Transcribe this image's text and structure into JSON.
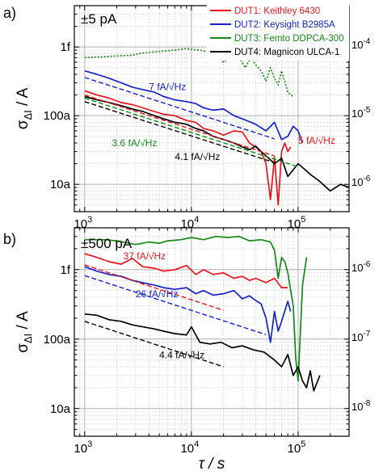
{
  "chart_data": [
    {
      "type": "line",
      "panel_label": "a)",
      "title": "±5 pA",
      "xscale": "log",
      "yscale": "log",
      "xlim": [
        800,
        300000
      ],
      "ylim": [
        4e-18,
        4e-15
      ],
      "ylabel": "σ_ΔI / A",
      "y_ticks": [
        {
          "value": 1e-17,
          "label": "10a"
        },
        {
          "value": 1e-16,
          "label": "100a"
        },
        {
          "value": 1e-15,
          "label": "1f"
        }
      ],
      "x_ticks": [
        {
          "value": 1000,
          "base": "10",
          "exp": "3"
        },
        {
          "value": 10000,
          "base": "10",
          "exp": "4"
        },
        {
          "value": 100000,
          "base": "10",
          "exp": "5"
        }
      ],
      "right_ticks": [
        {
          "value": 1e-17,
          "base": "10",
          "exp": "-6"
        },
        {
          "value": 1e-16,
          "base": "10",
          "exp": "-5"
        },
        {
          "value": 1e-15,
          "base": "10",
          "exp": "-4"
        }
      ],
      "grid": true,
      "legend_position": "top-right",
      "series": [
        {
          "name": "DUT1: Keithley 6430",
          "color": "#e8141b",
          "x": [
            1000,
            1300,
            1700,
            2200,
            2800,
            3500,
            4500,
            5500,
            7000,
            9000,
            11000,
            13000,
            16000,
            20000,
            25000,
            30000,
            35000,
            40000,
            45000,
            50000,
            55000,
            60000,
            65000,
            70000,
            75000,
            80000,
            85000
          ],
          "y": [
            2.3e-16,
            2e-16,
            1.8e-16,
            1.55e-16,
            1.45e-16,
            1.3e-16,
            1.15e-16,
            1.05e-16,
            1e-16,
            8.5e-17,
            8e-17,
            6.5e-17,
            6e-17,
            5.2e-17,
            6e-17,
            5.8e-17,
            4e-17,
            3.5e-17,
            3e-17,
            2e-17,
            6e-18,
            2.5e-17,
            5e-18,
            3e-17,
            4e-17,
            3e-17,
            3.5e-17
          ]
        },
        {
          "name": "DUT2: Keysight B2985A",
          "color": "#1422c8",
          "x": [
            1000,
            1300,
            1700,
            2200,
            2800,
            3500,
            4500,
            5500,
            7000,
            9000,
            11000,
            13000,
            16000,
            20000,
            25000,
            30000,
            40000,
            50000,
            60000,
            70000,
            80000,
            90000,
            100000,
            110000
          ],
          "y": [
            4.5e-16,
            4e-16,
            3.5e-16,
            3e-16,
            2.6e-16,
            2.4e-16,
            2.2e-16,
            1.9e-16,
            1.7e-16,
            1.6e-16,
            1.5e-16,
            1.3e-16,
            1.2e-16,
            1.25e-16,
            1e-16,
            9e-17,
            7.5e-17,
            6e-17,
            8e-17,
            4.5e-17,
            5e-17,
            7e-17,
            6e-17,
            4e-17
          ]
        },
        {
          "name": "DUT3: Femto DDPCA-300",
          "color": "#138a13",
          "x": [
            1000,
            1500,
            2000,
            2800,
            3500,
            4500,
            5500,
            7000,
            9000,
            10000,
            12000,
            14000,
            17000,
            20000,
            24000,
            28000,
            32000,
            36000,
            40000,
            45000,
            50000,
            55000,
            60000,
            65000,
            70000,
            80000,
            90000
          ],
          "y": [
            7e-16,
            7.2e-16,
            7.4e-16,
            7.6e-16,
            8.2e-16,
            8.5e-16,
            8.7e-16,
            9e-16,
            9.5e-16,
            9.2e-16,
            9e-16,
            8.5e-16,
            8e-16,
            6e-16,
            7.5e-16,
            7e-16,
            5e-16,
            7e-16,
            5.5e-16,
            4.5e-16,
            3.2e-16,
            5e-16,
            3.5e-16,
            2.8e-16,
            4.5e-16,
            2.2e-16,
            1.9e-16
          ]
        },
        {
          "name": "DUT4: Magnicon ULCA-1",
          "color": "#000000",
          "x": [
            1000,
            1300,
            1700,
            2200,
            2800,
            3500,
            4500,
            5500,
            7000,
            9000,
            11000,
            13000,
            16000,
            20000,
            25000,
            30000,
            35000,
            40000,
            45000,
            50000,
            60000,
            70000,
            80000,
            100000,
            130000,
            160000,
            200000,
            250000,
            300000
          ],
          "y": [
            1.9e-16,
            1.7e-16,
            1.55e-16,
            1.4e-16,
            1.25e-16,
            1.15e-16,
            1e-16,
            9e-17,
            8e-17,
            7.5e-17,
            6.5e-17,
            6e-17,
            5e-17,
            4.5e-17,
            4e-17,
            3.5e-17,
            3.2e-17,
            3.6e-17,
            3e-17,
            2.6e-17,
            2e-17,
            2.4e-17,
            1.3e-17,
            2e-17,
            1.4e-17,
            1.1e-17,
            8e-18,
            1e-17,
            9e-18
          ]
        }
      ],
      "fits": [
        {
          "series_index": 0,
          "color": "#e8141b",
          "x": [
            1000,
            60000
          ],
          "y": [
            2e-16,
            2.6e-17
          ]
        },
        {
          "series_index": 1,
          "color": "#1422c8",
          "x": [
            1000,
            60000
          ],
          "y": [
            3.6e-16,
            4.6e-17
          ]
        },
        {
          "series_index": 2,
          "color": "#138a13",
          "x": [
            1000,
            100000
          ],
          "y": [
            1.8e-16,
            1.8e-17
          ]
        },
        {
          "series_index": 3,
          "color": "#000000",
          "x": [
            1000,
            60000
          ],
          "y": [
            1.6e-16,
            2.07e-17
          ]
        }
      ],
      "annotations": [
        {
          "text": "7 fA/√Hz",
          "color": "#1422c8",
          "x": 4000,
          "y": 2.35e-16
        },
        {
          "text": "5 fA/√Hz",
          "color": "#e8141b",
          "x": 100000,
          "y": 3.9e-17
        },
        {
          "text": "3.6 fA/√Hz",
          "color": "#138a13",
          "x": 1800,
          "y": 3.6e-17
        },
        {
          "text": "4.1 fA/√Hz",
          "color": "#000000",
          "x": 7000,
          "y": 2.25e-17
        }
      ]
    },
    {
      "type": "line",
      "panel_label": "b)",
      "title": "±500 pA",
      "xscale": "log",
      "yscale": "log",
      "xlim": [
        800,
        300000
      ],
      "ylim": [
        4e-18,
        4e-15
      ],
      "xlabel": "τ / s",
      "ylabel": "σ_ΔI / A",
      "y_ticks": [
        {
          "value": 1e-17,
          "label": "10a"
        },
        {
          "value": 1e-16,
          "label": "100a"
        },
        {
          "value": 1e-15,
          "label": "1f"
        }
      ],
      "x_ticks": [
        {
          "value": 1000,
          "base": "10",
          "exp": "3"
        },
        {
          "value": 10000,
          "base": "10",
          "exp": "4"
        },
        {
          "value": 100000,
          "base": "10",
          "exp": "5"
        }
      ],
      "right_ticks": [
        {
          "value": 1e-17,
          "base": "10",
          "exp": "-8"
        },
        {
          "value": 1e-16,
          "base": "10",
          "exp": "-7"
        },
        {
          "value": 1e-15,
          "base": "10",
          "exp": "-6"
        }
      ],
      "grid": true,
      "series": [
        {
          "name": "DUT1: Keithley 6430",
          "color": "#e8141b",
          "x": [
            1000,
            1300,
            1700,
            2200,
            2800,
            3500,
            4500,
            5500,
            7000,
            9000,
            11000,
            13000,
            16000,
            20000,
            25000,
            30000,
            35000,
            40000,
            50000,
            60000,
            70000,
            80000
          ],
          "y": [
            1.7e-15,
            1.5e-15,
            1.3e-15,
            1.2e-15,
            1.45e-15,
            1.1e-15,
            1.05e-15,
            9.5e-16,
            1e-15,
            1.15e-15,
            8.5e-16,
            1e-15,
            8.5e-16,
            9e-16,
            7.5e-16,
            8e-16,
            7e-16,
            7.5e-16,
            6.5e-16,
            7.5e-16,
            5.5e-16,
            5.5e-16
          ]
        },
        {
          "name": "DUT2: Keysight B2985A",
          "color": "#1422c8",
          "x": [
            1000,
            1300,
            1700,
            2200,
            2800,
            3500,
            4500,
            5500,
            7000,
            9000,
            11000,
            13000,
            16000,
            20000,
            25000,
            30000,
            35000,
            40000,
            45000,
            50000,
            55000,
            60000,
            65000,
            70000,
            80000,
            85000
          ],
          "y": [
            1.1e-15,
            9.5e-16,
            8.5e-16,
            8e-16,
            7e-16,
            6.5e-16,
            6e-16,
            5.5e-16,
            5.2e-16,
            5.5e-16,
            4.5e-16,
            5e-16,
            4.3e-16,
            4.5e-16,
            5e-16,
            3.8e-16,
            4.2e-16,
            3.6e-16,
            3.2e-16,
            2e-16,
            9e-17,
            2.5e-16,
            1.3e-16,
            1.8e-16,
            3.5e-16,
            2.5e-16
          ]
        },
        {
          "name": "DUT3: Femto DDPCA-300",
          "color": "#138a13",
          "x": [
            1000,
            1500,
            2000,
            3000,
            4000,
            5000,
            6000,
            8000,
            10000,
            13000,
            17000,
            22000,
            28000,
            35000,
            45000,
            55000,
            60000,
            65000,
            70000,
            75000,
            80000,
            90000,
            95000,
            100000,
            110000,
            120000
          ],
          "y": [
            2.7e-15,
            2.7e-15,
            2.6e-15,
            2.3e-15,
            2.5e-15,
            2.4e-15,
            2.6e-15,
            2.7e-15,
            2.9e-15,
            2.7e-15,
            3e-15,
            2.9e-15,
            3e-15,
            2.6e-15,
            2.7e-15,
            2.5e-15,
            1.9e-15,
            7.5e-16,
            1.5e-15,
            1.3e-15,
            9e-16,
            3e-16,
            5.3e-17,
            2.5e-17,
            6e-16,
            1.5e-15
          ]
        },
        {
          "name": "DUT4: Magnicon ULCA-1",
          "color": "#000000",
          "x": [
            1000,
            1300,
            1700,
            2200,
            2800,
            3500,
            4500,
            5500,
            7000,
            9000,
            10000,
            12000,
            15000,
            19000,
            24000,
            30000,
            38000,
            48000,
            60000,
            70000,
            80000,
            90000,
            100000,
            110000,
            120000,
            130000,
            140000,
            160000
          ],
          "y": [
            2.3e-16,
            2.2e-16,
            1.9e-16,
            1.8e-16,
            1.6e-16,
            1.5e-16,
            1.4e-16,
            1.3e-16,
            1.2e-16,
            1.15e-16,
            1.5e-16,
            9e-17,
            8.5e-17,
            9e-17,
            7.5e-17,
            8e-17,
            7e-17,
            6.5e-17,
            5e-17,
            4e-17,
            6e-17,
            3e-17,
            4e-17,
            2.5e-17,
            2e-17,
            3.5e-17,
            1.8e-17,
            3e-17
          ]
        }
      ],
      "fits": [
        {
          "series_index": 0,
          "color": "#e8141b",
          "x": [
            1000,
            20000
          ],
          "y": [
            1.17e-15,
            2.6e-16
          ]
        },
        {
          "series_index": 1,
          "color": "#1422c8",
          "x": [
            1000,
            50000
          ],
          "y": [
            8.2e-16,
            1.16e-16
          ]
        },
        {
          "series_index": 3,
          "color": "#000000",
          "x": [
            1000,
            20000
          ],
          "y": [
            1.8e-16,
            4e-17
          ]
        }
      ],
      "annotations": [
        {
          "text": "37 fA/√Hz",
          "color": "#e8141b",
          "x": 2300,
          "y": 1.4e-15
        },
        {
          "text": "26 fA/√Hz",
          "color": "#1422c8",
          "x": 3000,
          "y": 4e-16
        },
        {
          "text": "4.4 fA/√Hz",
          "color": "#000000",
          "x": 5000,
          "y": 5.3e-17
        }
      ]
    }
  ]
}
